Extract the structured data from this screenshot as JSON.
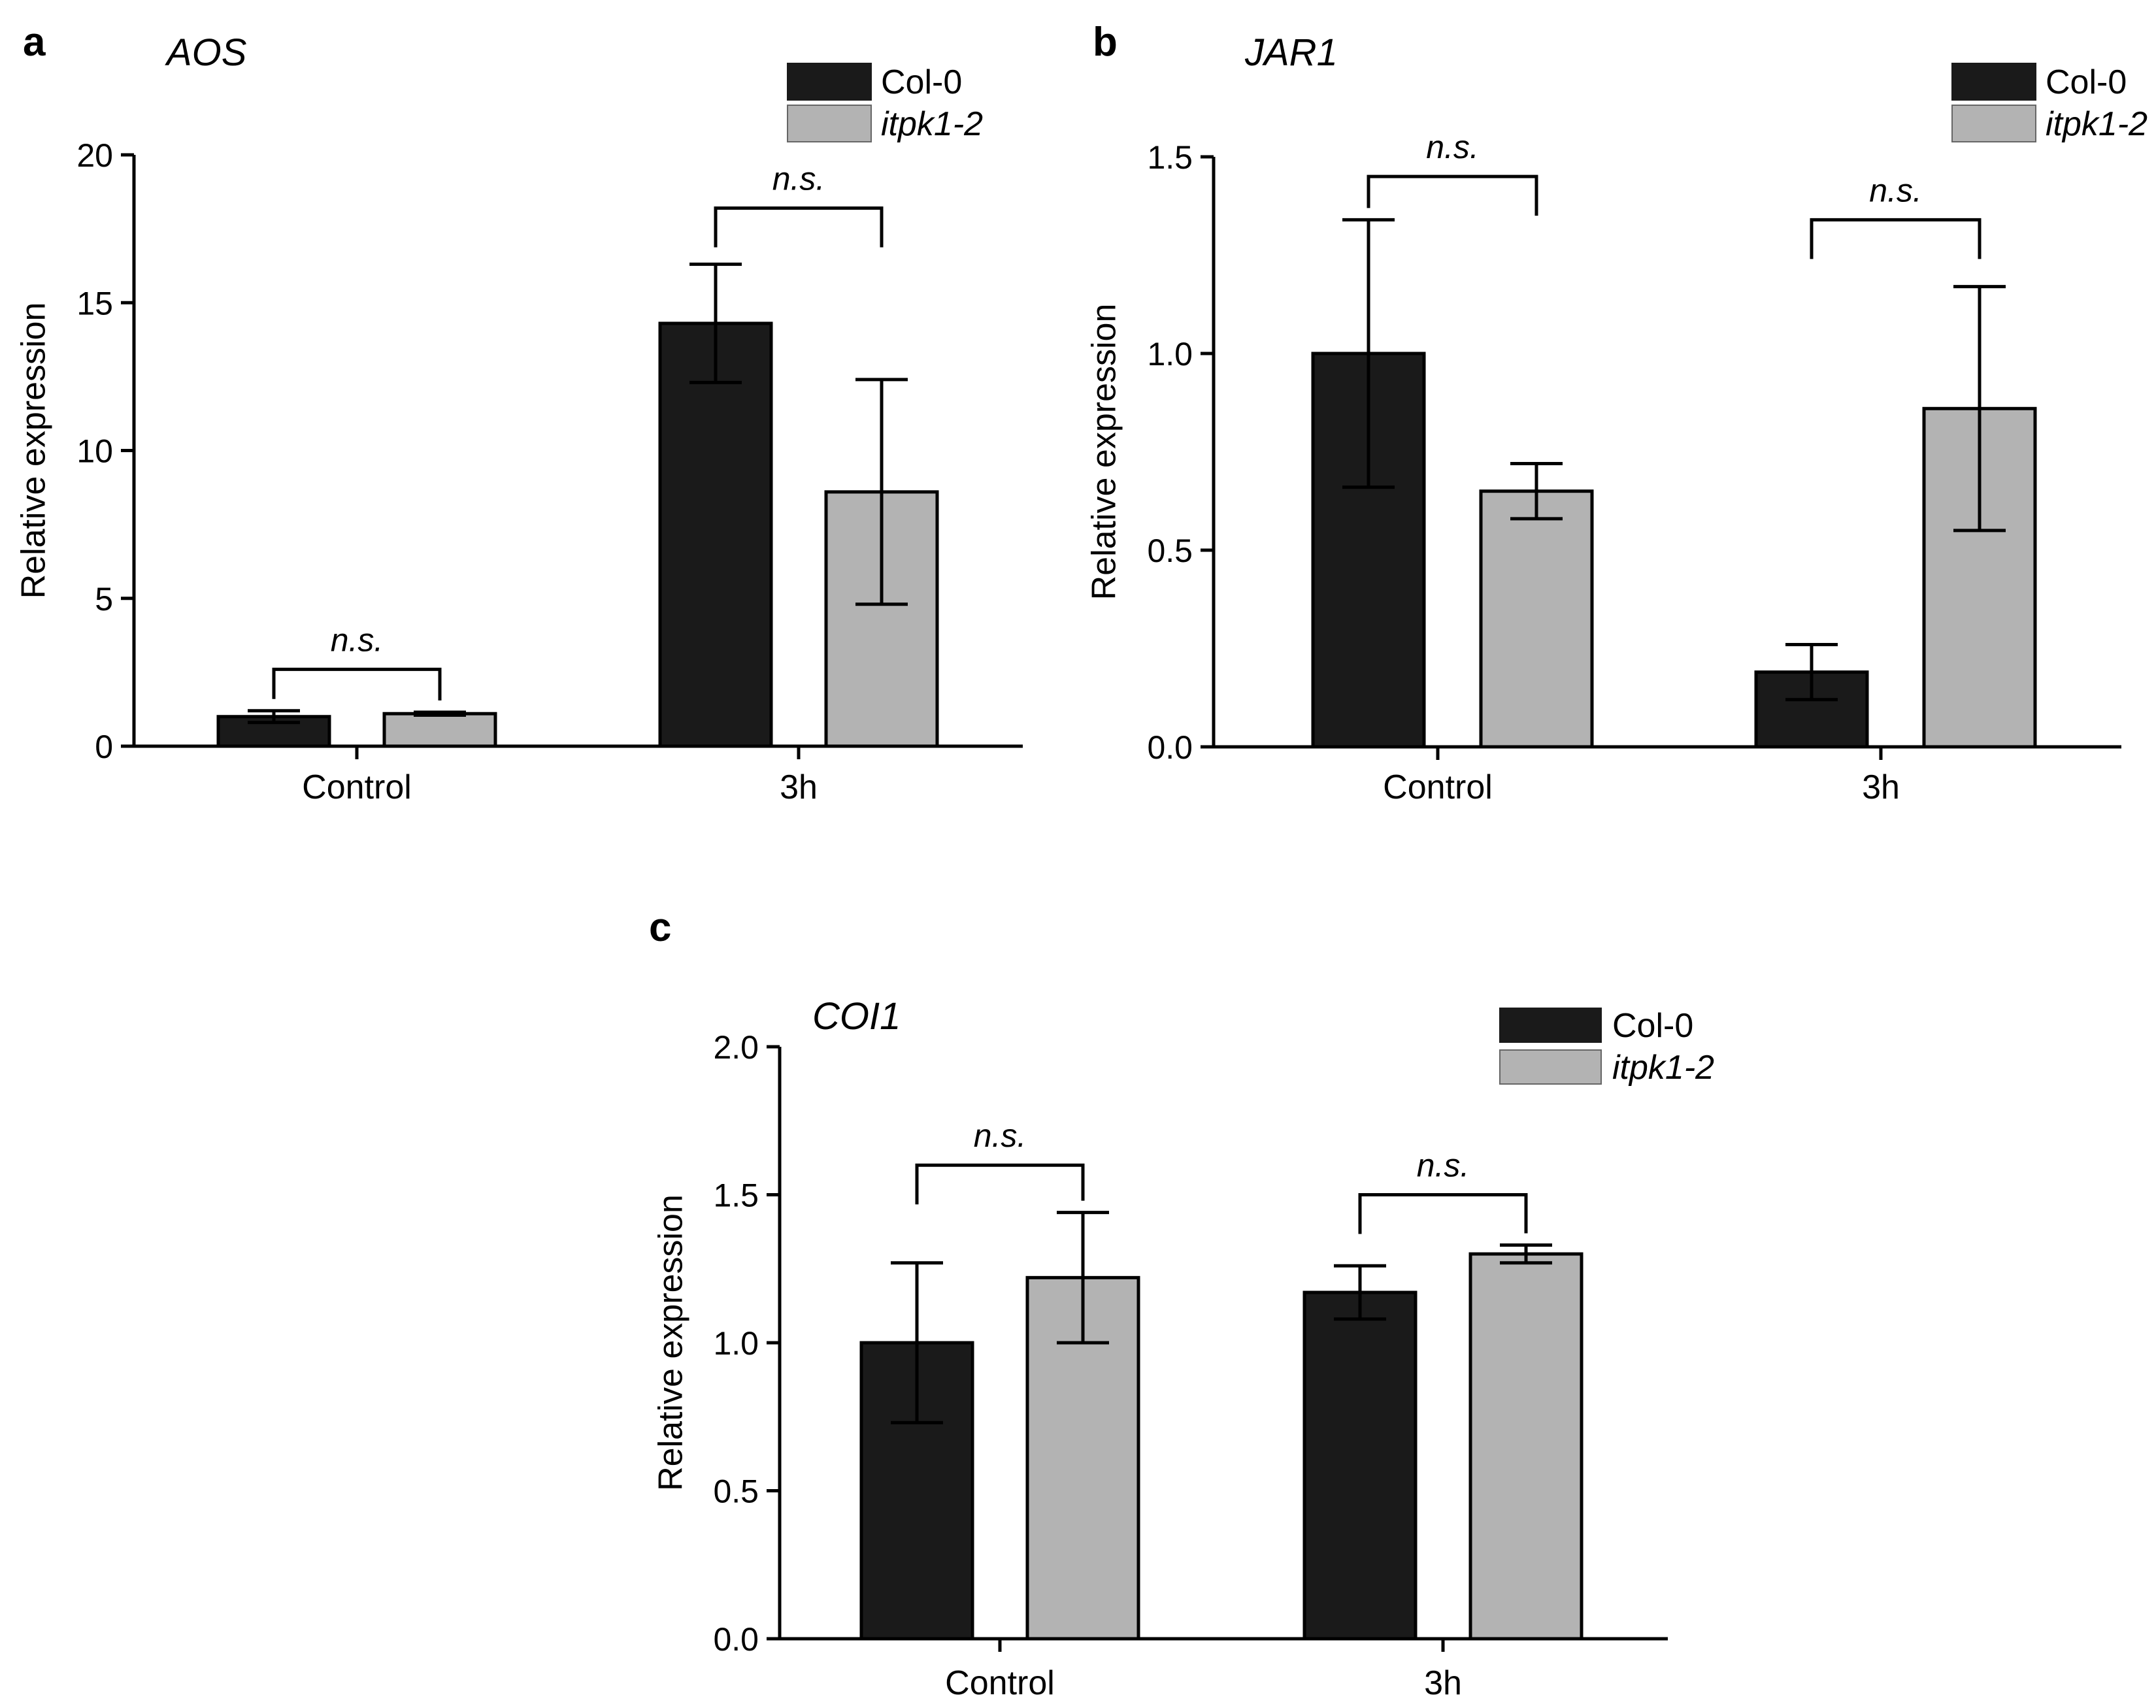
{
  "colors": {
    "col0": "#1a1a1a",
    "itpk": "#b3b3b3",
    "stroke": "#000000"
  },
  "chart_data": [
    {
      "type": "bar",
      "panel": "a",
      "title": "AOS",
      "xlabel": "",
      "ylabel": "Relative expression",
      "categories": [
        "Control",
        "3h"
      ],
      "ylim": [
        0,
        20
      ],
      "yticks": [
        0,
        5,
        10,
        15,
        20
      ],
      "ytick_labels": [
        "0",
        "5",
        "10",
        "15",
        "20"
      ],
      "series": [
        {
          "name": "Col-0",
          "values": [
            1.0,
            14.3
          ],
          "errors": [
            0.2,
            2.0
          ]
        },
        {
          "name": "itpk1-2",
          "values": [
            1.1,
            8.6
          ],
          "errors": [
            0.05,
            3.8
          ]
        }
      ],
      "annotations": [
        {
          "category": "Control",
          "text": "n.s.",
          "bracket_y": 2.6
        },
        {
          "category": "3h",
          "text": "n.s.",
          "bracket_y": 18.2
        }
      ],
      "legend": "top-right"
    },
    {
      "type": "bar",
      "panel": "b",
      "title": "JAR1",
      "xlabel": "",
      "ylabel": "Relative expression",
      "categories": [
        "Control",
        "3h"
      ],
      "ylim": [
        0,
        1.5
      ],
      "yticks": [
        0,
        0.5,
        1.0,
        1.5
      ],
      "ytick_labels": [
        "0.0",
        "0.5",
        "1.0",
        "1.5"
      ],
      "series": [
        {
          "name": "Col-0",
          "values": [
            1.0,
            0.19
          ],
          "errors": [
            0.34,
            0.07
          ]
        },
        {
          "name": "itpk1-2",
          "values": [
            0.65,
            0.86
          ],
          "errors": [
            0.07,
            0.31
          ]
        }
      ],
      "annotations": [
        {
          "category": "Control",
          "text": "n.s.",
          "bracket_y": 1.45
        },
        {
          "category": "3h",
          "text": "n.s.",
          "bracket_y": 1.34
        }
      ],
      "legend": "top-right"
    },
    {
      "type": "bar",
      "panel": "c",
      "title": "COI1",
      "xlabel": "",
      "ylabel": "Relative expression",
      "categories": [
        "Control",
        "3h"
      ],
      "ylim": [
        0,
        2.0
      ],
      "yticks": [
        0,
        0.5,
        1.0,
        1.5,
        2.0
      ],
      "ytick_labels": [
        "0.0",
        "0.5",
        "1.0",
        "1.5",
        "2.0"
      ],
      "series": [
        {
          "name": "Col-0",
          "values": [
            1.0,
            1.17
          ],
          "errors": [
            0.27,
            0.09
          ]
        },
        {
          "name": "itpk1-2",
          "values": [
            1.22,
            1.3
          ],
          "errors": [
            0.22,
            0.03
          ]
        }
      ],
      "annotations": [
        {
          "category": "Control",
          "text": "n.s.",
          "bracket_y": 1.6
        },
        {
          "category": "3h",
          "text": "n.s.",
          "bracket_y": 1.5
        }
      ],
      "legend": "top-right"
    }
  ]
}
